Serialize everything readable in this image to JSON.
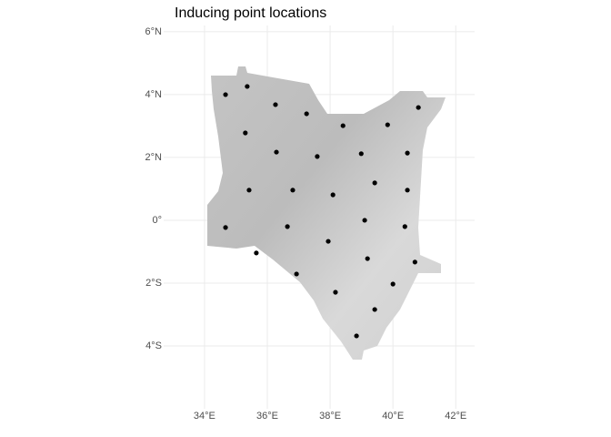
{
  "chart_data": {
    "type": "scatter",
    "title": "Inducing point locations",
    "x": [
      34.67,
      35.36,
      36.26,
      37.25,
      38.41,
      39.83,
      40.81,
      35.3,
      36.29,
      37.59,
      38.99,
      40.46,
      35.42,
      36.81,
      38.09,
      39.42,
      40.46,
      34.67,
      36.64,
      39.1,
      40.38,
      35.65,
      37.94,
      39.19,
      40.7,
      36.93,
      38.17,
      40.0,
      39.42,
      38.84
    ],
    "values": [
      4.0,
      4.26,
      3.68,
      3.39,
      3.01,
      3.04,
      3.59,
      2.78,
      2.17,
      2.03,
      2.12,
      2.14,
      0.96,
      0.96,
      0.81,
      1.19,
      0.96,
      -0.23,
      -0.2,
      0.0,
      -0.2,
      -1.04,
      -0.67,
      -1.22,
      -1.33,
      -1.71,
      -2.29,
      -2.03,
      -2.84,
      -3.68
    ],
    "color": "#000000",
    "xlim": [
      32.7,
      42.6
    ],
    "ylim": [
      -6.0,
      6.2
    ],
    "xticks": [
      {
        "value": 34,
        "label": "34°E"
      },
      {
        "value": 36,
        "label": "36°E"
      },
      {
        "value": 38,
        "label": "38°E"
      },
      {
        "value": 40,
        "label": "40°E"
      },
      {
        "value": 42,
        "label": "42°E"
      }
    ],
    "yticks": [
      {
        "value": -4,
        "label": "4°S"
      },
      {
        "value": -2,
        "label": "2°S"
      },
      {
        "value": 0,
        "label": "0°"
      },
      {
        "value": 2,
        "label": "2°N"
      },
      {
        "value": 4,
        "label": "4°N"
      },
      {
        "value": 6,
        "label": "6°N"
      }
    ],
    "grid": true
  }
}
